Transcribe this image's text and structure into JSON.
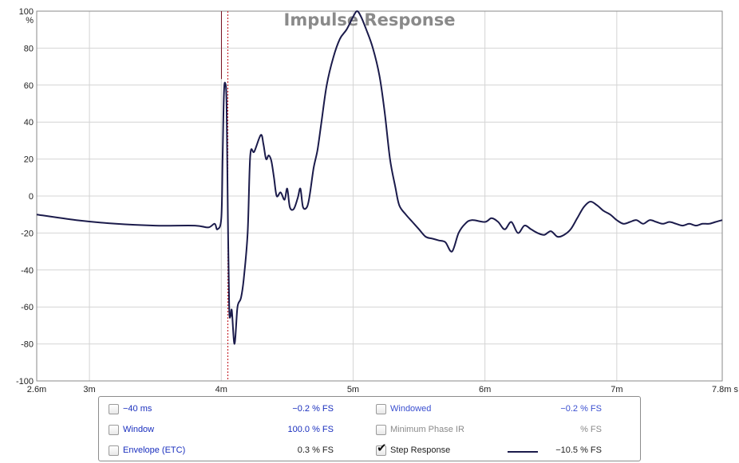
{
  "chart_data": {
    "type": "line",
    "title": "Impulse Response",
    "ylabel": "%",
    "xunit": "s",
    "xlim": [
      0.0026,
      0.0078
    ],
    "ylim": [
      -100,
      100
    ],
    "grid": true,
    "yticks": [
      100,
      80,
      60,
      40,
      20,
      0,
      -20,
      -40,
      -60,
      -80,
      -100
    ],
    "xticks": [
      {
        "value": 0.0026,
        "label": "2.6m"
      },
      {
        "value": 0.003,
        "label": "3m"
      },
      {
        "value": 0.004,
        "label": "4m"
      },
      {
        "value": 0.005,
        "label": "5m"
      },
      {
        "value": 0.006,
        "label": "6m"
      },
      {
        "value": 0.007,
        "label": "7m"
      },
      {
        "value": 0.0078,
        "label": "7.8m s"
      }
    ],
    "cursor_x": 0.00405,
    "series": [
      {
        "color": "#1b1b4b",
        "x": [
          0.0026,
          0.0029,
          0.0032,
          0.0035,
          0.0038,
          0.0039,
          0.00395,
          0.00397,
          0.004,
          0.00401,
          0.00402,
          0.00403,
          0.00404,
          0.00405,
          0.00406,
          0.00407,
          0.00408,
          0.0041,
          0.00412,
          0.00413,
          0.00415,
          0.00417,
          0.0042,
          0.00422,
          0.00425,
          0.0043,
          0.00432,
          0.00434,
          0.00436,
          0.00438,
          0.0044,
          0.00442,
          0.00445,
          0.00448,
          0.0045,
          0.00452,
          0.00455,
          0.00458,
          0.0046,
          0.00462,
          0.00465,
          0.00467,
          0.0047,
          0.00473,
          0.00476,
          0.0048,
          0.00485,
          0.0049,
          0.00495,
          0.005,
          0.00503,
          0.00506,
          0.0051,
          0.00515,
          0.0052,
          0.00524,
          0.00528,
          0.00532,
          0.00535,
          0.0054,
          0.00545,
          0.0055,
          0.00555,
          0.0056,
          0.00565,
          0.0057,
          0.00575,
          0.0058,
          0.00585,
          0.0059,
          0.006,
          0.00605,
          0.0061,
          0.00615,
          0.0062,
          0.00625,
          0.0063,
          0.00635,
          0.0064,
          0.00645,
          0.0065,
          0.00655,
          0.0066,
          0.00665,
          0.0067,
          0.00675,
          0.0068,
          0.00685,
          0.0069,
          0.00695,
          0.007,
          0.00705,
          0.0071,
          0.00715,
          0.0072,
          0.00725,
          0.0073,
          0.00735,
          0.0074,
          0.00745,
          0.0075,
          0.00755,
          0.0076,
          0.00765,
          0.0077,
          0.00775,
          0.0078
        ],
        "y": [
          -10,
          -13,
          -15,
          -16,
          -16,
          -17,
          -15,
          -18,
          -12,
          20,
          55,
          61,
          50,
          -10,
          -60,
          -65,
          -62,
          -80,
          -62,
          -58,
          -55,
          -45,
          -20,
          22,
          24,
          33,
          28,
          20,
          22,
          19,
          10,
          0,
          2,
          -2,
          4,
          -6,
          -7,
          -1,
          4,
          -6,
          -6,
          0,
          15,
          25,
          40,
          60,
          75,
          85,
          90,
          97,
          100,
          97,
          90,
          80,
          65,
          45,
          20,
          5,
          -5,
          -10,
          -14,
          -18,
          -22,
          -23,
          -24,
          -25,
          -30,
          -20,
          -15,
          -13,
          -14,
          -12,
          -14,
          -18,
          -14,
          -20,
          -16,
          -18,
          -20,
          -21,
          -19,
          -22,
          -21,
          -18,
          -12,
          -6,
          -3,
          -5,
          -8,
          -10,
          -13,
          -15,
          -14,
          -13,
          -15,
          -13,
          -14,
          -15,
          -14,
          -15,
          -16,
          -15,
          -16,
          -15,
          -15,
          -14,
          -13
        ]
      }
    ]
  },
  "legend": {
    "rows": [
      {
        "left": {
          "checked": false,
          "label": "−40 ms",
          "value": "−0.2 % FS"
        },
        "right": {
          "checked": false,
          "label": "Windowed",
          "value": "−0.2 % FS"
        }
      },
      {
        "left": {
          "checked": false,
          "label": "Window",
          "value": "100.0 % FS"
        },
        "right": {
          "checked": false,
          "label": "Minimum Phase IR",
          "value": "% FS"
        }
      },
      {
        "left": {
          "checked": false,
          "label": "Envelope (ETC)",
          "value": "0.3 % FS"
        },
        "right": {
          "checked": true,
          "label": "Step Response",
          "value": "−10.5 % FS"
        }
      }
    ]
  },
  "colors": {
    "trace": "#1b1b4b",
    "cursor": "#c0121a",
    "grid": "#d4d4d4",
    "label_blue": "#1a2fbe"
  }
}
